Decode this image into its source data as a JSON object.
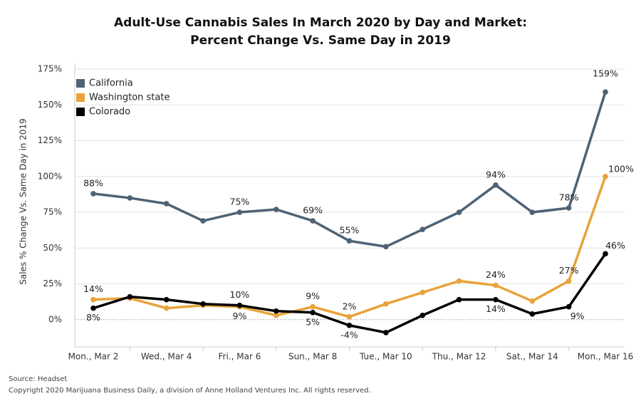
{
  "chart_data": {
    "type": "line",
    "title": [
      "Adult-Use Cannabis Sales In March 2020 by Day and Market:",
      "Percent Change Vs. Same Day in 2019"
    ],
    "y_label": "Sales % Change Vs. Same Day in 2019",
    "source": "Source: Headset",
    "copyright": "Copyright 2020 Marijuana Business Daily, a division of Anne Holland Ventures Inc. All rights reserved.",
    "categories": [
      "Mon., Mar 2",
      null,
      "Wed., Mar 4",
      null,
      "Fri., Mar 6",
      null,
      "Sun., Mar 8",
      null,
      "Tue., Mar 10",
      null,
      "Thu., Mar 12",
      null,
      "Sat., Mar 14",
      null,
      "Mon., Mar 16"
    ],
    "series": [
      {
        "name": "California",
        "color": "#4e6275",
        "values": [
          88,
          85,
          81,
          69,
          75,
          77,
          69,
          55,
          51,
          63,
          75,
          94,
          75,
          78,
          159
        ],
        "value_labels": [
          "88%",
          null,
          null,
          null,
          "75%",
          null,
          "69%",
          "55%",
          null,
          null,
          null,
          "94%",
          null,
          "78%",
          "159%"
        ]
      },
      {
        "name": "Washington state",
        "color": "#e8a33a",
        "values": [
          14,
          15,
          8,
          10,
          9,
          3,
          9,
          2,
          11,
          19,
          27,
          24,
          13,
          27,
          100
        ],
        "value_labels": [
          "14%",
          null,
          null,
          null,
          "9%",
          null,
          "9%",
          "2%",
          null,
          null,
          null,
          "24%",
          null,
          "27%",
          "100%"
        ]
      },
      {
        "name": "Colorado",
        "color": "#000000",
        "values": [
          8,
          16,
          14,
          11,
          10,
          6,
          5,
          -4,
          -9,
          3,
          14,
          14,
          4,
          9,
          46
        ],
        "value_labels": [
          "8%",
          null,
          null,
          null,
          "10%",
          null,
          "5%",
          "-4%",
          null,
          null,
          null,
          "14%",
          null,
          "9%",
          "46%"
        ]
      }
    ],
    "ylim": [
      -19,
      175
    ],
    "yticks": [
      {
        "value": 0,
        "label": "0%"
      },
      {
        "value": 25,
        "label": "25%"
      },
      {
        "value": 50,
        "label": "50%"
      },
      {
        "value": 75,
        "label": "75%"
      },
      {
        "value": 100,
        "label": "100%"
      },
      {
        "value": 125,
        "label": "125%"
      },
      {
        "value": 150,
        "label": "150%"
      },
      {
        "value": 175,
        "label": "175%"
      }
    ],
    "grid": true,
    "legend": "top-left"
  }
}
